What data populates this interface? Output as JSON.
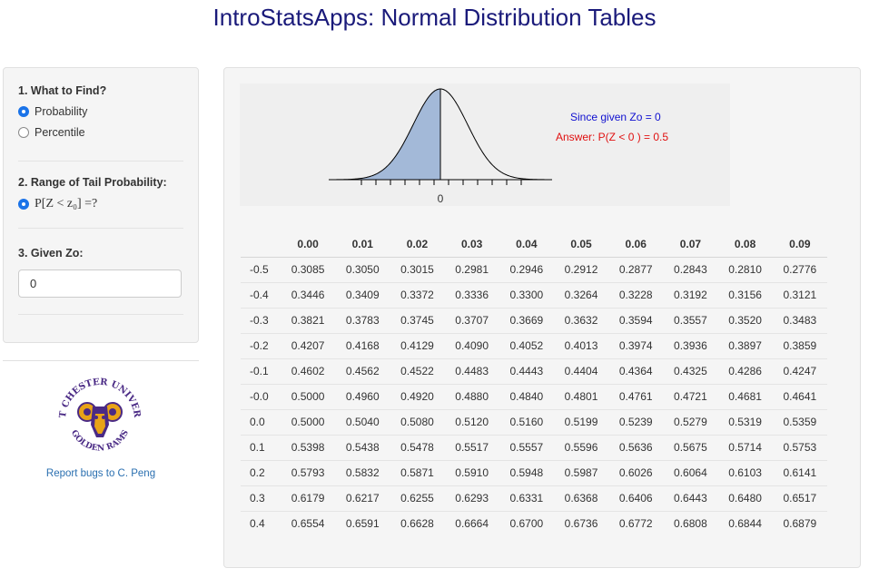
{
  "app": {
    "title": "IntroStatsApps: Normal Distribution Tables"
  },
  "sidebar": {
    "section1_label": "1. What to Find?",
    "find_options": [
      {
        "label": "Probability",
        "selected": true
      },
      {
        "label": "Percentile",
        "selected": false
      }
    ],
    "section2_label": "2. Range of Tail Probability:",
    "range_options": [
      {
        "label": "P[Z < z₀] =?",
        "selected": true
      }
    ],
    "section3_label": "3. Given Zo:",
    "zo_value": "0",
    "logo_text_top": "WEST CHESTER UNIVERSITY",
    "logo_text_bottom": "GOLDEN RAMS",
    "bug_link": "Report bugs to C. Peng"
  },
  "plot": {
    "axis_label": "0",
    "since_line": "Since given Zo =  0",
    "answer_line": "Answer: P(Z <  0 ) =  0.5",
    "shade_color": "#a3b9d8"
  },
  "table": {
    "columns": [
      "",
      "0.00",
      "0.01",
      "0.02",
      "0.03",
      "0.04",
      "0.05",
      "0.06",
      "0.07",
      "0.08",
      "0.09"
    ],
    "rows": [
      [
        "-0.5",
        "0.3085",
        "0.3050",
        "0.3015",
        "0.2981",
        "0.2946",
        "0.2912",
        "0.2877",
        "0.2843",
        "0.2810",
        "0.2776"
      ],
      [
        "-0.4",
        "0.3446",
        "0.3409",
        "0.3372",
        "0.3336",
        "0.3300",
        "0.3264",
        "0.3228",
        "0.3192",
        "0.3156",
        "0.3121"
      ],
      [
        "-0.3",
        "0.3821",
        "0.3783",
        "0.3745",
        "0.3707",
        "0.3669",
        "0.3632",
        "0.3594",
        "0.3557",
        "0.3520",
        "0.3483"
      ],
      [
        "-0.2",
        "0.4207",
        "0.4168",
        "0.4129",
        "0.4090",
        "0.4052",
        "0.4013",
        "0.3974",
        "0.3936",
        "0.3897",
        "0.3859"
      ],
      [
        "-0.1",
        "0.4602",
        "0.4562",
        "0.4522",
        "0.4483",
        "0.4443",
        "0.4404",
        "0.4364",
        "0.4325",
        "0.4286",
        "0.4247"
      ],
      [
        "-0.0",
        "0.5000",
        "0.4960",
        "0.4920",
        "0.4880",
        "0.4840",
        "0.4801",
        "0.4761",
        "0.4721",
        "0.4681",
        "0.4641"
      ],
      [
        "0.0",
        "0.5000",
        "0.5040",
        "0.5080",
        "0.5120",
        "0.5160",
        "0.5199",
        "0.5239",
        "0.5279",
        "0.5319",
        "0.5359"
      ],
      [
        "0.1",
        "0.5398",
        "0.5438",
        "0.5478",
        "0.5517",
        "0.5557",
        "0.5596",
        "0.5636",
        "0.5675",
        "0.5714",
        "0.5753"
      ],
      [
        "0.2",
        "0.5793",
        "0.5832",
        "0.5871",
        "0.5910",
        "0.5948",
        "0.5987",
        "0.6026",
        "0.6064",
        "0.6103",
        "0.6141"
      ],
      [
        "0.3",
        "0.6179",
        "0.6217",
        "0.6255",
        "0.6293",
        "0.6331",
        "0.6368",
        "0.6406",
        "0.6443",
        "0.6480",
        "0.6517"
      ],
      [
        "0.4",
        "0.6554",
        "0.6591",
        "0.6628",
        "0.6664",
        "0.6700",
        "0.6736",
        "0.6772",
        "0.6808",
        "0.6844",
        "0.6879"
      ]
    ]
  }
}
